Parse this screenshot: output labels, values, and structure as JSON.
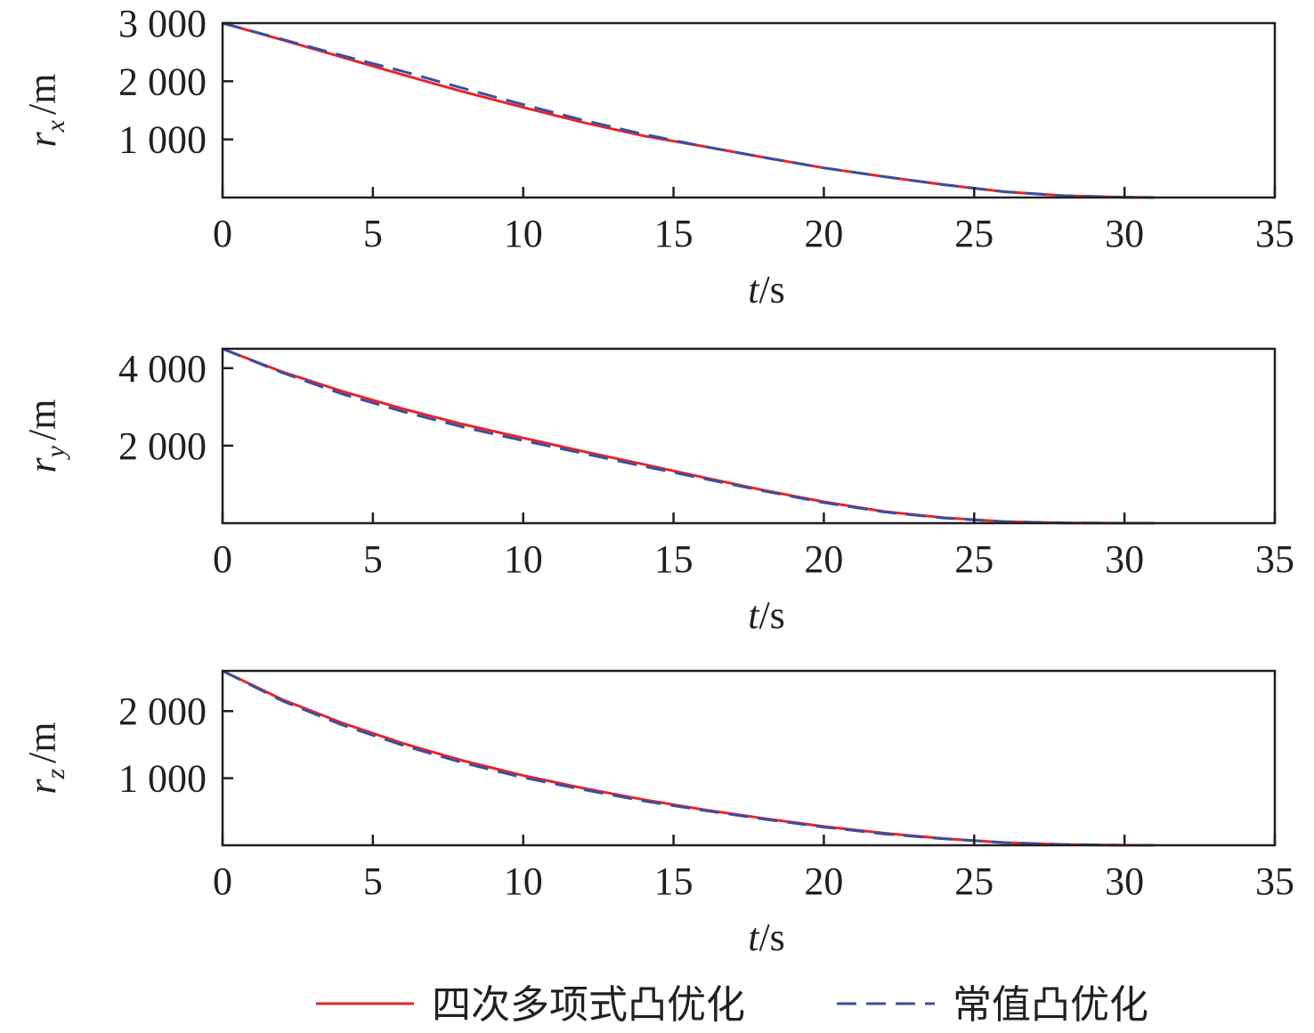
{
  "chart_data": [
    {
      "type": "line",
      "xlabel": {
        "var": "t",
        "unit": "/s"
      },
      "ylabel": {
        "var": "r",
        "sub": "x",
        "unit": "/m"
      },
      "xlim": [
        0,
        35
      ],
      "ylim": [
        0,
        3000
      ],
      "xticks": [
        0,
        5,
        10,
        15,
        20,
        25,
        30,
        35
      ],
      "xtick_labels": [
        "0",
        "5",
        "10",
        "15",
        "20",
        "25",
        "30",
        "35"
      ],
      "yticks": [
        1000,
        2000,
        3000
      ],
      "ytick_labels": [
        "1 000",
        "2 000",
        "3 000"
      ],
      "grid": false,
      "series": [
        {
          "name": "四次多项式凸优化",
          "color": "#e8242b",
          "dash": "solid",
          "x": [
            0,
            2,
            4,
            6,
            8,
            10,
            12,
            14,
            16,
            18,
            20,
            22,
            24,
            26,
            28,
            30,
            31
          ],
          "y": [
            3000,
            2710,
            2410,
            2110,
            1820,
            1550,
            1290,
            1060,
            880,
            690,
            510,
            360,
            220,
            100,
            30,
            5,
            0
          ]
        },
        {
          "name": "常值凸优化",
          "color": "#3a4fa0",
          "dash": "dashed",
          "x": [
            0,
            2,
            4,
            6,
            8,
            10,
            12,
            14,
            16,
            18,
            20,
            22,
            24,
            26,
            28,
            30,
            31
          ],
          "y": [
            3000,
            2720,
            2440,
            2170,
            1880,
            1600,
            1330,
            1090,
            880,
            690,
            510,
            360,
            220,
            100,
            30,
            5,
            0
          ]
        }
      ]
    },
    {
      "type": "line",
      "xlabel": {
        "var": "t",
        "unit": "/s"
      },
      "ylabel": {
        "var": "r",
        "sub": "y",
        "unit": "/m"
      },
      "xlim": [
        0,
        35
      ],
      "ylim": [
        0,
        4500
      ],
      "xticks": [
        0,
        5,
        10,
        15,
        20,
        25,
        30,
        35
      ],
      "xtick_labels": [
        "0",
        "5",
        "10",
        "15",
        "20",
        "25",
        "30",
        "35"
      ],
      "yticks": [
        2000,
        4000
      ],
      "ytick_labels": [
        "2 000",
        "4 000"
      ],
      "grid": false,
      "series": [
        {
          "name": "四次多项式凸优化",
          "color": "#e8242b",
          "dash": "solid",
          "x": [
            0,
            2,
            4,
            6,
            8,
            10,
            12,
            14,
            16,
            18,
            20,
            22,
            24,
            26,
            28,
            30,
            31
          ],
          "y": [
            4500,
            3900,
            3400,
            2950,
            2550,
            2200,
            1850,
            1520,
            1180,
            850,
            550,
            300,
            140,
            40,
            5,
            0,
            0
          ]
        },
        {
          "name": "常值凸优化",
          "color": "#3a4fa0",
          "dash": "dashed",
          "x": [
            0,
            2,
            4,
            6,
            8,
            10,
            12,
            14,
            16,
            18,
            20,
            22,
            24,
            26,
            28,
            30,
            31
          ],
          "y": [
            4500,
            3880,
            3330,
            2880,
            2480,
            2130,
            1800,
            1470,
            1150,
            830,
            530,
            290,
            130,
            40,
            5,
            0,
            0
          ]
        }
      ]
    },
    {
      "type": "line",
      "xlabel": {
        "var": "t",
        "unit": "/s"
      },
      "ylabel": {
        "var": "r",
        "sub": "z",
        "unit": "/m"
      },
      "xlim": [
        0,
        35
      ],
      "ylim": [
        0,
        2600
      ],
      "xticks": [
        0,
        5,
        10,
        15,
        20,
        25,
        30,
        35
      ],
      "xtick_labels": [
        "0",
        "5",
        "10",
        "15",
        "20",
        "25",
        "30",
        "35"
      ],
      "yticks": [
        1000,
        2000
      ],
      "ytick_labels": [
        "1 000",
        "2 000"
      ],
      "grid": false,
      "series": [
        {
          "name": "四次多项式凸优化",
          "color": "#e8242b",
          "dash": "solid",
          "x": [
            0,
            2,
            4,
            6,
            8,
            10,
            12,
            14,
            16,
            18,
            20,
            22,
            24,
            26,
            28,
            30,
            31
          ],
          "y": [
            2600,
            2170,
            1820,
            1520,
            1260,
            1040,
            850,
            680,
            530,
            400,
            280,
            180,
            100,
            40,
            10,
            0,
            0
          ]
        },
        {
          "name": "常值凸优化",
          "color": "#3a4fa0",
          "dash": "dashed",
          "x": [
            0,
            2,
            4,
            6,
            8,
            10,
            12,
            14,
            16,
            18,
            20,
            22,
            24,
            26,
            28,
            30,
            31
          ],
          "y": [
            2600,
            2150,
            1790,
            1490,
            1230,
            1010,
            830,
            660,
            520,
            390,
            270,
            170,
            95,
            40,
            10,
            0,
            0
          ]
        }
      ]
    }
  ],
  "legend": {
    "placement": "bottom-center",
    "items": [
      {
        "label": "四次多项式凸优化",
        "color": "#e8242b",
        "dash": "solid"
      },
      {
        "label": "常值凸优化",
        "color": "#3a4fa0",
        "dash": "dashed"
      }
    ]
  }
}
